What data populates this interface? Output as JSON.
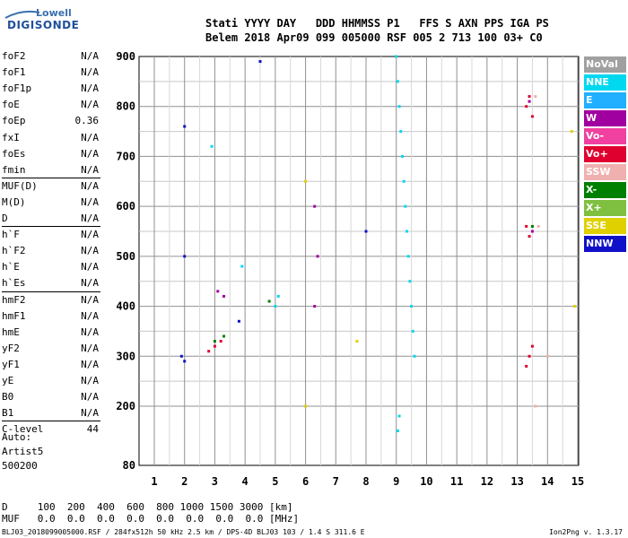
{
  "logo": {
    "top": "Lowell",
    "bottom": "DIGISONDE"
  },
  "header": {
    "line1": "Stati YYYY DAY   DDD HHMMSS P1   FFS S AXN PPS IGA PS",
    "line2": "Belem 2018 Apr09 099 005000 RSF 005 2 713 100 03+ C0"
  },
  "params": [
    {
      "name": "foF2",
      "value": "N/A"
    },
    {
      "name": "foF1",
      "value": "N/A"
    },
    {
      "name": "foF1p",
      "value": "N/A"
    },
    {
      "name": "foE",
      "value": "N/A"
    },
    {
      "name": "foEp",
      "value": "0.36"
    },
    {
      "name": "fxI",
      "value": "N/A"
    },
    {
      "name": "foEs",
      "value": "N/A"
    },
    {
      "name": "fmin",
      "value": "N/A"
    },
    {
      "name": "MUF(D)",
      "value": "N/A"
    },
    {
      "name": "M(D)",
      "value": "N/A"
    },
    {
      "name": "D",
      "value": "N/A"
    },
    {
      "name": "h`F",
      "value": "N/A"
    },
    {
      "name": "h`F2",
      "value": "N/A"
    },
    {
      "name": "h`E",
      "value": "N/A"
    },
    {
      "name": "h`Es",
      "value": "N/A"
    },
    {
      "name": "hmF2",
      "value": "N/A"
    },
    {
      "name": "hmF1",
      "value": "N/A"
    },
    {
      "name": "hmE",
      "value": "N/A"
    },
    {
      "name": "yF2",
      "value": "N/A"
    },
    {
      "name": "yF1",
      "value": "N/A"
    },
    {
      "name": "yE",
      "value": "N/A"
    },
    {
      "name": "B0",
      "value": "N/A"
    },
    {
      "name": "B1",
      "value": "N/A"
    },
    {
      "name": "C-level",
      "value": "44"
    }
  ],
  "auto": {
    "label": "Auto:",
    "artist": "Artist5",
    "code": "500200"
  },
  "bottom_table": {
    "d_row": "D     100  200  400  600  800 1000 1500 3000 [km]",
    "muf_row": "MUF   0.0  0.0  0.0  0.0  0.0  0.0  0.0  0.0 [MHz]"
  },
  "footer": "BLJ03_2018099005000.RSF / 284fx512h 50 kHz 2.5 km / DPS-4D BLJ03 103 / 1.4 S 311.6 E",
  "version": "Ion2Png v. 1.3.17",
  "legend": [
    {
      "label": "NoVal",
      "color": "#a0a0a0"
    },
    {
      "label": "NNE",
      "color": "#00d8f0"
    },
    {
      "label": "E",
      "color": "#20b0ff"
    },
    {
      "label": "W",
      "color": "#a000a0"
    },
    {
      "label": "Vo-",
      "color": "#f040a0"
    },
    {
      "label": "Vo+",
      "color": "#e00030"
    },
    {
      "label": "SSW",
      "color": "#f0b0b0"
    },
    {
      "label": "X-",
      "color": "#008000"
    },
    {
      "label": "X+",
      "color": "#80c040"
    },
    {
      "label": "SSE",
      "color": "#e0d000"
    },
    {
      "label": "NNW",
      "color": "#1010c8"
    }
  ],
  "chart_data": {
    "type": "scatter",
    "x_ticks": [
      "1",
      "2",
      "3",
      "4",
      "5",
      "6",
      "7",
      "8",
      "9",
      "10",
      "11",
      "12",
      "13",
      "14",
      "15"
    ],
    "y_ticks": [
      "80",
      "200",
      "300",
      "400",
      "500",
      "600",
      "700",
      "800",
      "900"
    ],
    "xlim": [
      0.6,
      15
    ],
    "ylim": [
      80,
      900
    ],
    "y_scale": "custom-compressed-below-200",
    "grid": true,
    "legend_position": "right",
    "series": [
      {
        "name": "NNE",
        "points": [
          [
            9.0,
            900
          ],
          [
            9.05,
            850
          ],
          [
            9.1,
            800
          ],
          [
            9.15,
            750
          ],
          [
            9.2,
            700
          ],
          [
            9.25,
            650
          ],
          [
            9.3,
            600
          ],
          [
            9.35,
            550
          ],
          [
            9.4,
            500
          ],
          [
            9.45,
            450
          ],
          [
            9.5,
            400
          ],
          [
            9.55,
            350
          ],
          [
            9.6,
            300
          ],
          [
            9.1,
            180
          ],
          [
            9.05,
            150
          ],
          [
            2.9,
            720
          ],
          [
            3.9,
            480
          ],
          [
            5.1,
            420
          ],
          [
            5.0,
            400
          ]
        ]
      },
      {
        "name": "Vo+",
        "points": [
          [
            13.3,
            800
          ],
          [
            13.4,
            820
          ],
          [
            13.5,
            780
          ],
          [
            13.3,
            560
          ],
          [
            13.4,
            540
          ],
          [
            13.4,
            300
          ],
          [
            13.3,
            280
          ],
          [
            13.5,
            320
          ],
          [
            3.0,
            320
          ],
          [
            3.2,
            330
          ],
          [
            2.8,
            310
          ]
        ]
      },
      {
        "name": "W",
        "points": [
          [
            3.1,
            430
          ],
          [
            3.3,
            420
          ],
          [
            6.3,
            600
          ],
          [
            6.4,
            500
          ],
          [
            6.3,
            400
          ],
          [
            13.4,
            810
          ],
          [
            13.5,
            550
          ]
        ]
      },
      {
        "name": "NNW",
        "points": [
          [
            2.0,
            760
          ],
          [
            2.0,
            500
          ],
          [
            2.0,
            290
          ],
          [
            3.8,
            370
          ],
          [
            4.5,
            890
          ],
          [
            8.0,
            550
          ],
          [
            1.9,
            300
          ]
        ]
      },
      {
        "name": "X-",
        "points": [
          [
            3.0,
            330
          ],
          [
            3.3,
            340
          ],
          [
            4.8,
            410
          ],
          [
            13.5,
            560
          ]
        ]
      },
      {
        "name": "SSE",
        "points": [
          [
            6.0,
            650
          ],
          [
            6.0,
            200
          ],
          [
            7.7,
            330
          ],
          [
            14.8,
            750
          ],
          [
            14.9,
            400
          ]
        ]
      },
      {
        "name": "SSW",
        "points": [
          [
            13.6,
            820
          ],
          [
            13.7,
            560
          ],
          [
            14.0,
            300
          ],
          [
            13.6,
            200
          ]
        ]
      }
    ]
  }
}
